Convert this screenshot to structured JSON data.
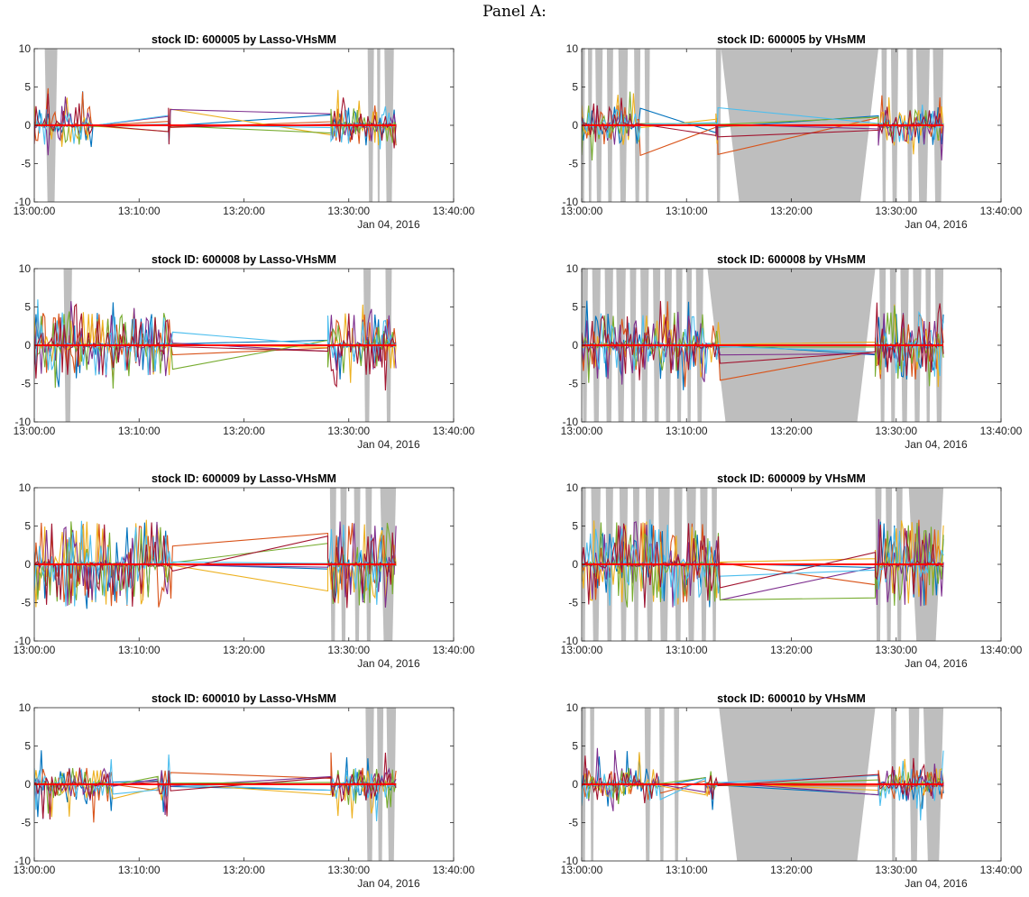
{
  "header": {
    "title": "Panel A:"
  },
  "chart_data": [
    {
      "type": "line",
      "title": "stock ID: 600005 by Lasso-VHsMM",
      "stock_id": "600005",
      "method": "Lasso-VHsMM",
      "ylim": [
        -10,
        10
      ],
      "yticks": [
        10,
        5,
        0,
        -5,
        -10
      ],
      "xticks": [
        "13:00:00",
        "13:10:00",
        "13:20:00",
        "13:30:00",
        "13:40:00"
      ],
      "xlim_minutes": [
        0,
        40
      ],
      "date_label": "Jan 04, 2016",
      "grid": false,
      "shaded_regions_minutes": [
        [
          1.0,
          2.2
        ],
        [
          31.8,
          32.4
        ],
        [
          32.7,
          33.0
        ],
        [
          33.4,
          34.3
        ]
      ],
      "activity": {
        "spans": [
          [
            0,
            5.6
          ],
          [
            12.8,
            13.0
          ],
          [
            28.3,
            34.5
          ]
        ],
        "amp": 1.2,
        "spikes": 5,
        "ramp": 1.5
      }
    },
    {
      "type": "line",
      "title": "stock ID: 600005 by VHsMM",
      "stock_id": "600005",
      "method": "VHsMM",
      "ylim": [
        -10,
        10
      ],
      "yticks": [
        10,
        5,
        0,
        -5,
        -10
      ],
      "xticks": [
        "13:00:00",
        "13:10:00",
        "13:20:00",
        "13:30:00",
        "13:40:00"
      ],
      "xlim_minutes": [
        0,
        40
      ],
      "date_label": "Jan 04, 2016",
      "grid": false,
      "shaded_regions_minutes": [
        [
          0,
          0.3
        ],
        [
          0.6,
          1.0
        ],
        [
          1.3,
          2.0
        ],
        [
          2.4,
          3.0
        ],
        [
          3.5,
          4.4
        ],
        [
          5.0,
          5.6
        ],
        [
          6.0,
          6.5
        ],
        [
          12.8,
          13.3
        ],
        [
          13.3,
          28.3
        ],
        [
          28.6,
          29.1
        ],
        [
          29.5,
          30.2
        ],
        [
          31.0,
          31.6
        ],
        [
          31.9,
          33.2
        ],
        [
          33.5,
          34.5
        ]
      ],
      "activity": {
        "spans": [
          [
            0,
            5.6
          ],
          [
            12.8,
            13.0
          ],
          [
            28.3,
            34.5
          ]
        ],
        "amp": 1.2,
        "spikes": 5,
        "ramp": 1.5
      }
    },
    {
      "type": "line",
      "title": "stock ID: 600008 by Lasso-VHsMM",
      "stock_id": "600008",
      "method": "Lasso-VHsMM",
      "ylim": [
        -10,
        10
      ],
      "yticks": [
        10,
        5,
        0,
        -5,
        -10
      ],
      "xticks": [
        "13:00:00",
        "13:10:00",
        "13:20:00",
        "13:30:00",
        "13:40:00"
      ],
      "xlim_minutes": [
        0,
        40
      ],
      "date_label": "Jan 04, 2016",
      "grid": false,
      "shaded_regions_minutes": [
        [
          2.8,
          3.6
        ],
        [
          31.4,
          32.1
        ],
        [
          33.5,
          34.1
        ]
      ],
      "activity": {
        "spans": [
          [
            0,
            13.2
          ],
          [
            28.0,
            34.5
          ]
        ],
        "amp": 2.0,
        "spikes": 6,
        "ramp": 1.3
      }
    },
    {
      "type": "line",
      "title": "stock ID: 600008 by VHsMM",
      "stock_id": "600008",
      "method": "VHsMM",
      "ylim": [
        -10,
        10
      ],
      "yticks": [
        10,
        5,
        0,
        -5,
        -10
      ],
      "xticks": [
        "13:00:00",
        "13:10:00",
        "13:20:00",
        "13:30:00",
        "13:40:00"
      ],
      "xlim_minutes": [
        0,
        40
      ],
      "date_label": "Jan 04, 2016",
      "grid": false,
      "shaded_regions_minutes": [
        [
          0,
          0.6
        ],
        [
          1.0,
          1.8
        ],
        [
          2.2,
          3.0
        ],
        [
          3.3,
          4.2
        ],
        [
          4.6,
          5.2
        ],
        [
          5.6,
          6.4
        ],
        [
          6.8,
          7.5
        ],
        [
          7.9,
          8.6
        ],
        [
          9.0,
          9.6
        ],
        [
          10.0,
          10.5
        ],
        [
          10.9,
          11.6
        ],
        [
          12.0,
          28.0
        ],
        [
          28.4,
          29.0
        ],
        [
          29.4,
          30.0
        ],
        [
          30.4,
          31.2
        ],
        [
          31.6,
          32.4
        ],
        [
          32.8,
          33.3
        ],
        [
          33.7,
          34.5
        ]
      ],
      "activity": {
        "spans": [
          [
            0,
            13.2
          ],
          [
            28.0,
            34.5
          ]
        ],
        "amp": 2.0,
        "spikes": 6,
        "ramp": 1.3
      }
    },
    {
      "type": "line",
      "title": "stock ID: 600009 by Lasso-VHsMM",
      "stock_id": "600009",
      "method": "Lasso-VHsMM",
      "ylim": [
        -10,
        10
      ],
      "yticks": [
        10,
        5,
        0,
        -5,
        -10
      ],
      "xticks": [
        "13:00:00",
        "13:10:00",
        "13:20:00",
        "13:30:00",
        "13:40:00"
      ],
      "xlim_minutes": [
        0,
        40
      ],
      "date_label": "Jan 04, 2016",
      "grid": false,
      "shaded_regions_minutes": [
        [
          28.2,
          28.8
        ],
        [
          29.2,
          29.8
        ],
        [
          30.5,
          31.1
        ],
        [
          31.6,
          32.2
        ],
        [
          33.0,
          34.5
        ]
      ],
      "activity": {
        "spans": [
          [
            0,
            13.2
          ],
          [
            28.0,
            34.5
          ]
        ],
        "amp": 2.6,
        "spikes": 6,
        "ramp": 4.5
      }
    },
    {
      "type": "line",
      "title": "stock ID: 600009 by VHsMM",
      "stock_id": "600009",
      "method": "VHsMM",
      "ylim": [
        -10,
        10
      ],
      "yticks": [
        10,
        5,
        0,
        -5,
        -10
      ],
      "xticks": [
        "13:00:00",
        "13:10:00",
        "13:20:00",
        "13:30:00",
        "13:40:00"
      ],
      "xlim_minutes": [
        0,
        40
      ],
      "date_label": "Jan 04, 2016",
      "grid": false,
      "shaded_regions_minutes": [
        [
          0,
          0.4
        ],
        [
          0.9,
          1.8
        ],
        [
          2.3,
          3.0
        ],
        [
          3.6,
          4.4
        ],
        [
          4.9,
          5.5
        ],
        [
          6.1,
          6.9
        ],
        [
          7.3,
          8.4
        ],
        [
          8.8,
          9.6
        ],
        [
          10.0,
          10.9
        ],
        [
          11.3,
          12.0
        ],
        [
          12.4,
          12.9
        ],
        [
          28.0,
          28.6
        ],
        [
          29.0,
          29.6
        ],
        [
          30.0,
          30.6
        ],
        [
          31.2,
          34.5
        ]
      ],
      "activity": {
        "spans": [
          [
            0,
            13.2
          ],
          [
            28.0,
            34.5
          ]
        ],
        "amp": 2.6,
        "spikes": 6,
        "ramp": 4.5
      }
    },
    {
      "type": "line",
      "title": "stock ID: 600010 by Lasso-VHsMM",
      "stock_id": "600010",
      "method": "Lasso-VHsMM",
      "ylim": [
        -10,
        10
      ],
      "yticks": [
        10,
        5,
        0,
        -5,
        -10
      ],
      "xticks": [
        "13:00:00",
        "13:10:00",
        "13:20:00",
        "13:30:00",
        "13:40:00"
      ],
      "xlim_minutes": [
        0,
        40
      ],
      "date_label": "Jan 04, 2016",
      "grid": false,
      "shaded_regions_minutes": [
        [
          31.6,
          32.4
        ],
        [
          32.7,
          33.3
        ],
        [
          33.6,
          34.5
        ]
      ],
      "activity": {
        "spans": [
          [
            0,
            7.5
          ],
          [
            11.8,
            13.0
          ],
          [
            28.3,
            34.5
          ]
        ],
        "amp": 1.0,
        "spikes": 5,
        "ramp": 1.4
      }
    },
    {
      "type": "line",
      "title": "stock ID: 600010 by VHsMM",
      "stock_id": "600010",
      "method": "VHsMM",
      "ylim": [
        -10,
        10
      ],
      "yticks": [
        10,
        5,
        0,
        -5,
        -10
      ],
      "xticks": [
        "13:00:00",
        "13:10:00",
        "13:20:00",
        "13:30:00",
        "13:40:00"
      ],
      "xlim_minutes": [
        0,
        40
      ],
      "date_label": "Jan 04, 2016",
      "grid": false,
      "shaded_regions_minutes": [
        [
          0,
          0.4
        ],
        [
          0.8,
          1.2
        ],
        [
          6.0,
          6.6
        ],
        [
          7.4,
          7.9
        ],
        [
          8.8,
          9.3
        ],
        [
          13.1,
          28.0
        ],
        [
          29.5,
          30.0
        ],
        [
          31.2,
          32.2
        ],
        [
          32.6,
          34.5
        ]
      ],
      "activity": {
        "spans": [
          [
            0,
            7.5
          ],
          [
            11.8,
            13.0
          ],
          [
            28.3,
            34.5
          ]
        ],
        "amp": 1.0,
        "spikes": 5,
        "ramp": 1.4
      }
    }
  ],
  "series_colors": [
    "#0072bd",
    "#d95319",
    "#edb120",
    "#7e2f8e",
    "#77ac30",
    "#4dbeee",
    "#a2142f"
  ],
  "zero_line_color": "#ff0000",
  "shade_color": "#bebebe"
}
